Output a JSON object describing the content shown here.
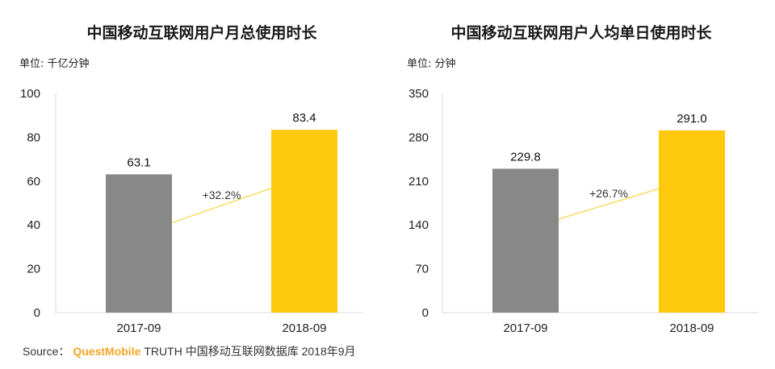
{
  "source": {
    "prefix": "Source：",
    "brand": "QuestMobile",
    "text": "TRUTH 中国移动互联网数据库 2018年9月"
  },
  "colors": {
    "bar_2017": "#888888",
    "bar_2018": "#ffc90e",
    "growth_line": "#f5d94a"
  },
  "chart_data": [
    {
      "type": "bar",
      "title": "中国移动互联网用户月总使用时长",
      "unit": "单位: 千亿分钟",
      "categories": [
        "2017-09",
        "2018-09"
      ],
      "values": [
        63.1,
        83.4
      ],
      "value_labels": [
        "63.1",
        "83.4"
      ],
      "ylim": [
        0,
        100
      ],
      "yticks": [
        0,
        20,
        40,
        60,
        80,
        100
      ],
      "growth": "+32.2%",
      "grid": false
    },
    {
      "type": "bar",
      "title": "中国移动互联网用户人均单日使用时长",
      "unit": "单位: 分钟",
      "categories": [
        "2017-09",
        "2018-09"
      ],
      "values": [
        229.8,
        291.0
      ],
      "value_labels": [
        "229.8",
        "291.0"
      ],
      "ylim": [
        0,
        350
      ],
      "yticks": [
        0,
        70,
        140,
        210,
        280,
        350
      ],
      "growth": "+26.7%",
      "grid": false
    }
  ]
}
